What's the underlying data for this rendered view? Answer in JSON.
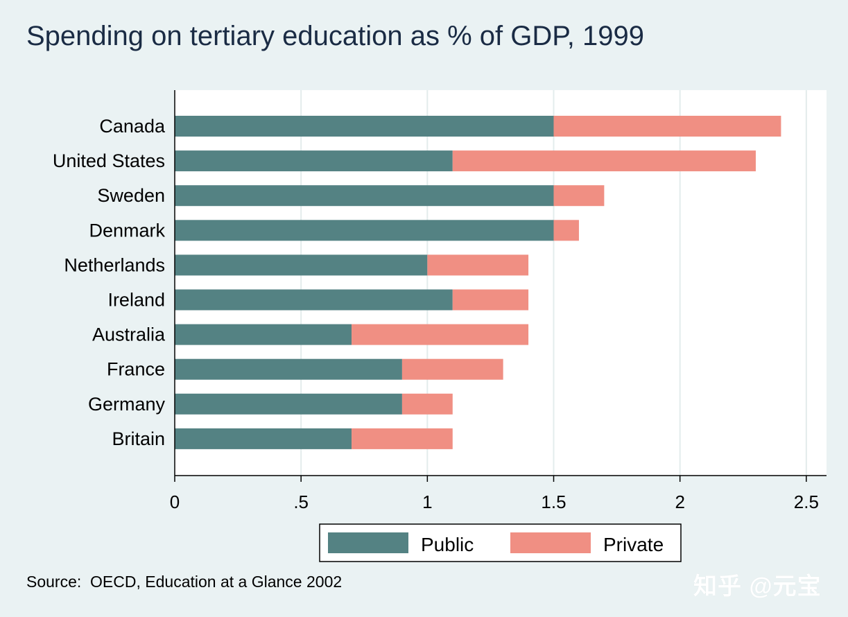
{
  "chart_data": {
    "type": "bar",
    "orientation": "horizontal",
    "stacked": true,
    "title": "Spending on tertiary education as % of GDP, 1999",
    "categories": [
      "Canada",
      "United States",
      "Sweden",
      "Denmark",
      "Netherlands",
      "Ireland",
      "Australia",
      "France",
      "Germany",
      "Britain"
    ],
    "series": [
      {
        "name": "Public",
        "color": "#548283",
        "values": [
          1.5,
          1.1,
          1.5,
          1.5,
          1.0,
          1.1,
          0.7,
          0.9,
          0.9,
          0.7
        ]
      },
      {
        "name": "Private",
        "color": "#f08f83",
        "values": [
          0.9,
          1.2,
          0.2,
          0.1,
          0.4,
          0.3,
          0.7,
          0.4,
          0.2,
          0.4
        ]
      }
    ],
    "xlim": [
      0,
      2.58
    ],
    "x_ticks": [
      0,
      0.5,
      1,
      1.5,
      2,
      2.5
    ],
    "x_tick_labels": [
      "0",
      ".5",
      "1",
      "1.5",
      "2",
      "2.5"
    ],
    "grid": true,
    "legend_position": "bottom"
  },
  "source_note": "Source:  OECD, Education at a Glance 2002",
  "watermark": "知乎 @元宝"
}
